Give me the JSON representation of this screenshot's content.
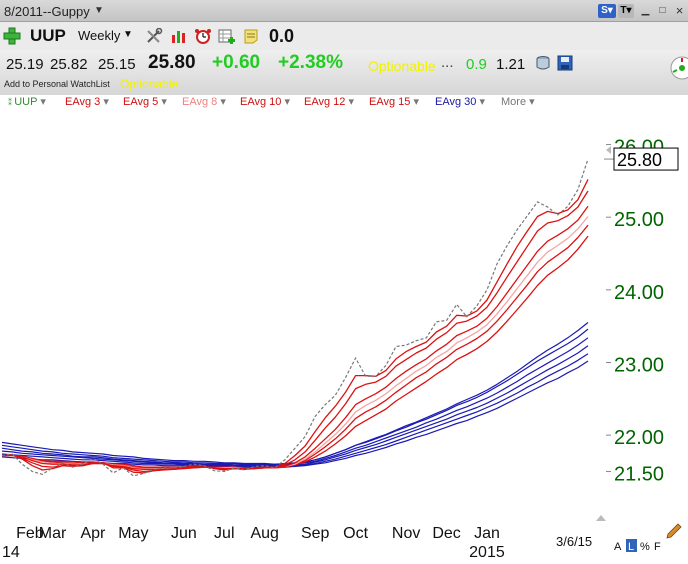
{
  "window": {
    "title": "8/2011--Guppy"
  },
  "toolbar": {
    "symbol": "UUP",
    "period": "Weekly",
    "value": "0.0"
  },
  "quote": {
    "open": "25.19",
    "high": "25.82",
    "low": "25.15",
    "last": "25.80",
    "change": "+0.60",
    "change_pct": "+2.38%",
    "optionable": "Optionable",
    "dots": "...",
    "green_value": "0.9",
    "value": "1.21",
    "watchlist_link": "Add to Personal WatchList",
    "watchlist_optionable": "Optionable"
  },
  "legend": [
    {
      "label": "UUP",
      "color": "#2e8b2e"
    },
    {
      "label": "EAvg 3",
      "color": "#cc1111"
    },
    {
      "label": "EAvg 5",
      "color": "#cc1111"
    },
    {
      "label": "EAvg 8",
      "color": "#f08080"
    },
    {
      "label": "EAvg 10",
      "color": "#cc1111"
    },
    {
      "label": "EAvg 12",
      "color": "#cc1111"
    },
    {
      "label": "EAvg 15",
      "color": "#cc1111"
    },
    {
      "label": "EAvg 30",
      "color": "#1a1aa0"
    },
    {
      "label": "More",
      "color": "#777777"
    }
  ],
  "footer": {
    "date": "3/6/15",
    "toggles": [
      "A",
      "L",
      "%",
      "F"
    ]
  },
  "colors": {
    "price": "#777777",
    "short_ema": "#dd1111",
    "mid_ema": "#f4a6a6",
    "long_ema": "#1a1ab4",
    "axis_text": "#006400"
  },
  "chart_data": {
    "type": "line",
    "title": "",
    "xlabel": "",
    "ylabel": "",
    "ylim": [
      21.3,
      26.2
    ],
    "ticks_y": [
      {
        "value": 26.0,
        "label": "26.00"
      },
      {
        "value": 25.0,
        "label": "25.00"
      },
      {
        "value": 24.0,
        "label": "24.00"
      },
      {
        "value": 23.0,
        "label": "23.00"
      },
      {
        "value": 22.0,
        "label": "22.00"
      },
      {
        "value": 21.5,
        "label": "21.50"
      }
    ],
    "last_price": {
      "value": 25.8,
      "label": "25.80"
    },
    "ticks_x": [
      {
        "week": 1,
        "label": "Feb",
        "sub": "14"
      },
      {
        "week": 5,
        "label": "Mar",
        "sub": ""
      },
      {
        "week": 9,
        "label": "Apr",
        "sub": ""
      },
      {
        "week": 13,
        "label": "May",
        "sub": ""
      },
      {
        "week": 18,
        "label": "Jun",
        "sub": ""
      },
      {
        "week": 22,
        "label": "Jul",
        "sub": ""
      },
      {
        "week": 26,
        "label": "Aug",
        "sub": ""
      },
      {
        "week": 31,
        "label": "Sep",
        "sub": ""
      },
      {
        "week": 35,
        "label": "Oct",
        "sub": ""
      },
      {
        "week": 40,
        "label": "Nov",
        "sub": ""
      },
      {
        "week": 44,
        "label": "Dec",
        "sub": ""
      },
      {
        "week": 48,
        "label": "Jan",
        "sub": "2015"
      }
    ],
    "price": [
      21.72,
      21.74,
      21.6,
      21.5,
      21.46,
      21.55,
      21.62,
      21.56,
      21.6,
      21.68,
      21.6,
      21.48,
      21.55,
      21.44,
      21.47,
      21.53,
      21.55,
      21.55,
      21.57,
      21.6,
      21.58,
      21.51,
      21.5,
      21.55,
      21.52,
      21.57,
      21.58,
      21.55,
      21.66,
      21.82,
      21.98,
      22.26,
      22.42,
      22.55,
      22.79,
      23.06,
      22.81,
      22.81,
      22.96,
      23.22,
      23.24,
      23.3,
      23.34,
      23.56,
      23.58,
      23.8,
      23.63,
      23.78,
      24.0,
      24.36,
      24.61,
      24.83,
      25.02,
      25.21,
      25.14,
      25.03,
      25.15,
      25.38,
      25.8
    ],
    "series": [
      {
        "name": "EAvg 3",
        "values": [
          21.72,
          21.73,
          21.67,
          21.58,
          21.52,
          21.54,
          21.58,
          21.57,
          21.58,
          21.63,
          21.62,
          21.55,
          21.55,
          21.49,
          21.48,
          21.51,
          21.53,
          21.54,
          21.56,
          21.58,
          21.58,
          21.54,
          21.52,
          21.54,
          21.53,
          21.55,
          21.56,
          21.56,
          21.61,
          21.72,
          21.85,
          22.05,
          22.24,
          22.4,
          22.59,
          22.82,
          22.82,
          22.81,
          22.89,
          23.05,
          23.15,
          23.22,
          23.28,
          23.42,
          23.5,
          23.65,
          23.64,
          23.71,
          23.86,
          24.11,
          24.36,
          24.6,
          24.81,
          25.01,
          25.08,
          25.05,
          25.1,
          25.24,
          25.52
        ]
      },
      {
        "name": "EAvg 5",
        "values": [
          21.72,
          21.73,
          21.68,
          21.62,
          21.57,
          21.56,
          21.58,
          21.58,
          21.58,
          21.61,
          21.61,
          21.57,
          21.56,
          21.52,
          21.5,
          21.51,
          21.52,
          21.53,
          21.55,
          21.56,
          21.57,
          21.55,
          21.53,
          21.54,
          21.53,
          21.54,
          21.55,
          21.55,
          21.59,
          21.66,
          21.77,
          21.93,
          22.1,
          22.25,
          22.43,
          22.64,
          22.7,
          22.73,
          22.81,
          22.95,
          23.04,
          23.13,
          23.2,
          23.32,
          23.41,
          23.54,
          23.57,
          23.64,
          23.76,
          23.96,
          24.18,
          24.39,
          24.6,
          24.81,
          24.92,
          24.95,
          25.02,
          25.14,
          25.36
        ]
      },
      {
        "name": "EAvg 8",
        "values": [
          21.72,
          21.72,
          21.7,
          21.65,
          21.61,
          21.6,
          21.6,
          21.59,
          21.59,
          21.61,
          21.61,
          21.58,
          21.57,
          21.54,
          21.53,
          21.53,
          21.53,
          21.53,
          21.54,
          21.55,
          21.56,
          21.55,
          21.54,
          21.54,
          21.54,
          21.54,
          21.55,
          21.55,
          21.57,
          21.62,
          21.7,
          21.82,
          21.95,
          22.08,
          22.24,
          22.42,
          22.5,
          22.57,
          22.66,
          22.78,
          22.88,
          22.97,
          23.05,
          23.16,
          23.25,
          23.37,
          23.43,
          23.5,
          23.61,
          23.77,
          23.96,
          24.15,
          24.34,
          24.53,
          24.67,
          24.75,
          24.84,
          24.96,
          25.15
        ]
      },
      {
        "name": "EAvg 10",
        "values": [
          21.72,
          21.72,
          21.7,
          21.66,
          21.63,
          21.61,
          21.61,
          21.6,
          21.6,
          21.61,
          21.61,
          21.59,
          21.58,
          21.55,
          21.54,
          21.54,
          21.54,
          21.54,
          21.54,
          21.55,
          21.56,
          21.55,
          21.55,
          21.55,
          21.54,
          21.54,
          21.55,
          21.55,
          21.57,
          21.6,
          21.67,
          21.77,
          21.89,
          22.01,
          22.15,
          22.32,
          22.41,
          22.48,
          22.57,
          22.68,
          22.78,
          22.88,
          22.96,
          23.07,
          23.15,
          23.27,
          23.34,
          23.42,
          23.52,
          23.67,
          23.84,
          24.02,
          24.2,
          24.38,
          24.52,
          24.61,
          24.71,
          24.84,
          25.01
        ]
      },
      {
        "name": "EAvg 12",
        "values": [
          21.72,
          21.72,
          21.7,
          21.67,
          21.64,
          21.63,
          21.62,
          21.61,
          21.6,
          21.61,
          21.61,
          21.59,
          21.58,
          21.56,
          21.55,
          21.55,
          21.55,
          21.54,
          21.55,
          21.55,
          21.56,
          21.55,
          21.55,
          21.55,
          21.55,
          21.55,
          21.55,
          21.55,
          21.56,
          21.6,
          21.65,
          21.74,
          21.84,
          21.95,
          22.08,
          22.23,
          22.32,
          22.39,
          22.48,
          22.59,
          22.69,
          22.79,
          22.87,
          22.98,
          23.07,
          23.18,
          23.25,
          23.33,
          23.43,
          23.57,
          23.73,
          23.9,
          24.07,
          24.25,
          24.38,
          24.48,
          24.58,
          24.72,
          24.89
        ]
      },
      {
        "name": "EAvg 15",
        "values": [
          21.72,
          21.72,
          21.71,
          21.68,
          21.65,
          21.64,
          21.64,
          21.63,
          21.62,
          21.62,
          21.62,
          21.6,
          21.6,
          21.58,
          21.56,
          21.56,
          21.56,
          21.56,
          21.56,
          21.56,
          21.56,
          21.56,
          21.56,
          21.56,
          21.55,
          21.55,
          21.55,
          21.55,
          21.56,
          21.59,
          21.63,
          21.7,
          21.78,
          21.88,
          21.99,
          22.12,
          22.2,
          22.28,
          22.36,
          22.47,
          22.56,
          22.65,
          22.74,
          22.84,
          22.93,
          23.04,
          23.11,
          23.19,
          23.29,
          23.42,
          23.57,
          23.73,
          23.89,
          24.06,
          24.2,
          24.3,
          24.41,
          24.56,
          24.74
        ]
      },
      {
        "name": "EAvg 30",
        "values": [
          21.9,
          21.88,
          21.86,
          21.84,
          21.82,
          21.8,
          21.79,
          21.77,
          21.76,
          21.75,
          21.74,
          21.72,
          21.71,
          21.7,
          21.68,
          21.67,
          21.66,
          21.65,
          21.65,
          21.64,
          21.64,
          21.63,
          21.62,
          21.62,
          21.61,
          21.61,
          21.61,
          21.6,
          21.61,
          21.62,
          21.63,
          21.66,
          21.7,
          21.75,
          21.8,
          21.86,
          21.91,
          21.96,
          22.01,
          22.07,
          22.13,
          22.18,
          22.24,
          22.3,
          22.36,
          22.43,
          22.49,
          22.55,
          22.62,
          22.7,
          22.79,
          22.88,
          22.98,
          23.08,
          23.17,
          23.25,
          23.34,
          23.44,
          23.55
        ]
      },
      {
        "name": "",
        "values": [
          21.86,
          21.84,
          21.82,
          21.8,
          21.78,
          21.77,
          21.75,
          21.74,
          21.73,
          21.72,
          21.71,
          21.69,
          21.68,
          21.67,
          21.66,
          21.65,
          21.64,
          21.63,
          21.63,
          21.62,
          21.62,
          21.61,
          21.61,
          21.61,
          21.6,
          21.6,
          21.6,
          21.6,
          21.6,
          21.61,
          21.63,
          21.66,
          21.7,
          21.75,
          21.8,
          21.86,
          21.9,
          21.95,
          22.0,
          22.06,
          22.11,
          22.17,
          22.22,
          22.28,
          22.34,
          22.41,
          22.46,
          22.52,
          22.59,
          22.67,
          22.75,
          22.84,
          22.93,
          23.02,
          23.1,
          23.18,
          23.26,
          23.35,
          23.46
        ]
      },
      {
        "name": "",
        "values": [
          21.82,
          21.8,
          21.78,
          21.77,
          21.75,
          21.74,
          21.73,
          21.71,
          21.7,
          21.7,
          21.69,
          21.67,
          21.66,
          21.65,
          21.64,
          21.63,
          21.62,
          21.62,
          21.61,
          21.61,
          21.6,
          21.6,
          21.6,
          21.59,
          21.59,
          21.59,
          21.59,
          21.59,
          21.59,
          21.6,
          21.62,
          21.64,
          21.68,
          21.72,
          21.77,
          21.82,
          21.86,
          21.91,
          21.96,
          22.01,
          22.06,
          22.11,
          22.17,
          22.22,
          22.28,
          22.34,
          22.39,
          22.45,
          22.51,
          22.58,
          22.66,
          22.74,
          22.83,
          22.91,
          22.99,
          23.07,
          23.15,
          23.24,
          23.34
        ]
      },
      {
        "name": "",
        "values": [
          21.78,
          21.77,
          21.75,
          21.74,
          21.73,
          21.72,
          21.71,
          21.7,
          21.69,
          21.68,
          21.67,
          21.66,
          21.65,
          21.64,
          21.63,
          21.62,
          21.61,
          21.61,
          21.6,
          21.6,
          21.59,
          21.59,
          21.59,
          21.58,
          21.58,
          21.58,
          21.58,
          21.58,
          21.58,
          21.59,
          21.6,
          21.63,
          21.66,
          21.7,
          21.74,
          21.79,
          21.83,
          21.87,
          21.92,
          21.97,
          22.02,
          22.07,
          22.12,
          22.17,
          22.22,
          22.28,
          22.33,
          22.38,
          22.44,
          22.51,
          22.58,
          22.66,
          22.74,
          22.82,
          22.9,
          22.97,
          23.05,
          23.13,
          23.23
        ]
      },
      {
        "name": "",
        "values": [
          21.74,
          21.73,
          21.72,
          21.71,
          21.7,
          21.69,
          21.68,
          21.67,
          21.66,
          21.66,
          21.65,
          21.64,
          21.63,
          21.62,
          21.61,
          21.61,
          21.6,
          21.6,
          21.59,
          21.59,
          21.58,
          21.58,
          21.58,
          21.58,
          21.57,
          21.57,
          21.57,
          21.57,
          21.57,
          21.58,
          21.59,
          21.61,
          21.64,
          21.67,
          21.71,
          21.75,
          21.79,
          21.83,
          21.87,
          21.92,
          21.97,
          22.02,
          22.07,
          22.12,
          22.17,
          22.22,
          22.27,
          22.32,
          22.38,
          22.44,
          22.51,
          22.58,
          22.66,
          22.73,
          22.81,
          22.88,
          22.95,
          23.03,
          23.12
        ]
      },
      {
        "name": "",
        "values": [
          21.7,
          21.69,
          21.68,
          21.67,
          21.66,
          21.66,
          21.65,
          21.64,
          21.63,
          21.63,
          21.62,
          21.61,
          21.61,
          21.6,
          21.59,
          21.59,
          21.58,
          21.58,
          21.58,
          21.57,
          21.57,
          21.57,
          21.57,
          21.56,
          21.56,
          21.56,
          21.56,
          21.56,
          21.56,
          21.57,
          21.58,
          21.6,
          21.62,
          21.65,
          21.68,
          21.72,
          21.75,
          21.79,
          21.83,
          21.88,
          21.92,
          21.97,
          22.01,
          22.06,
          22.11,
          22.16,
          22.2,
          22.26,
          22.31,
          22.37,
          22.44,
          22.51,
          22.58,
          22.65,
          22.72,
          22.78,
          22.86,
          22.93,
          23.02
        ]
      }
    ]
  }
}
